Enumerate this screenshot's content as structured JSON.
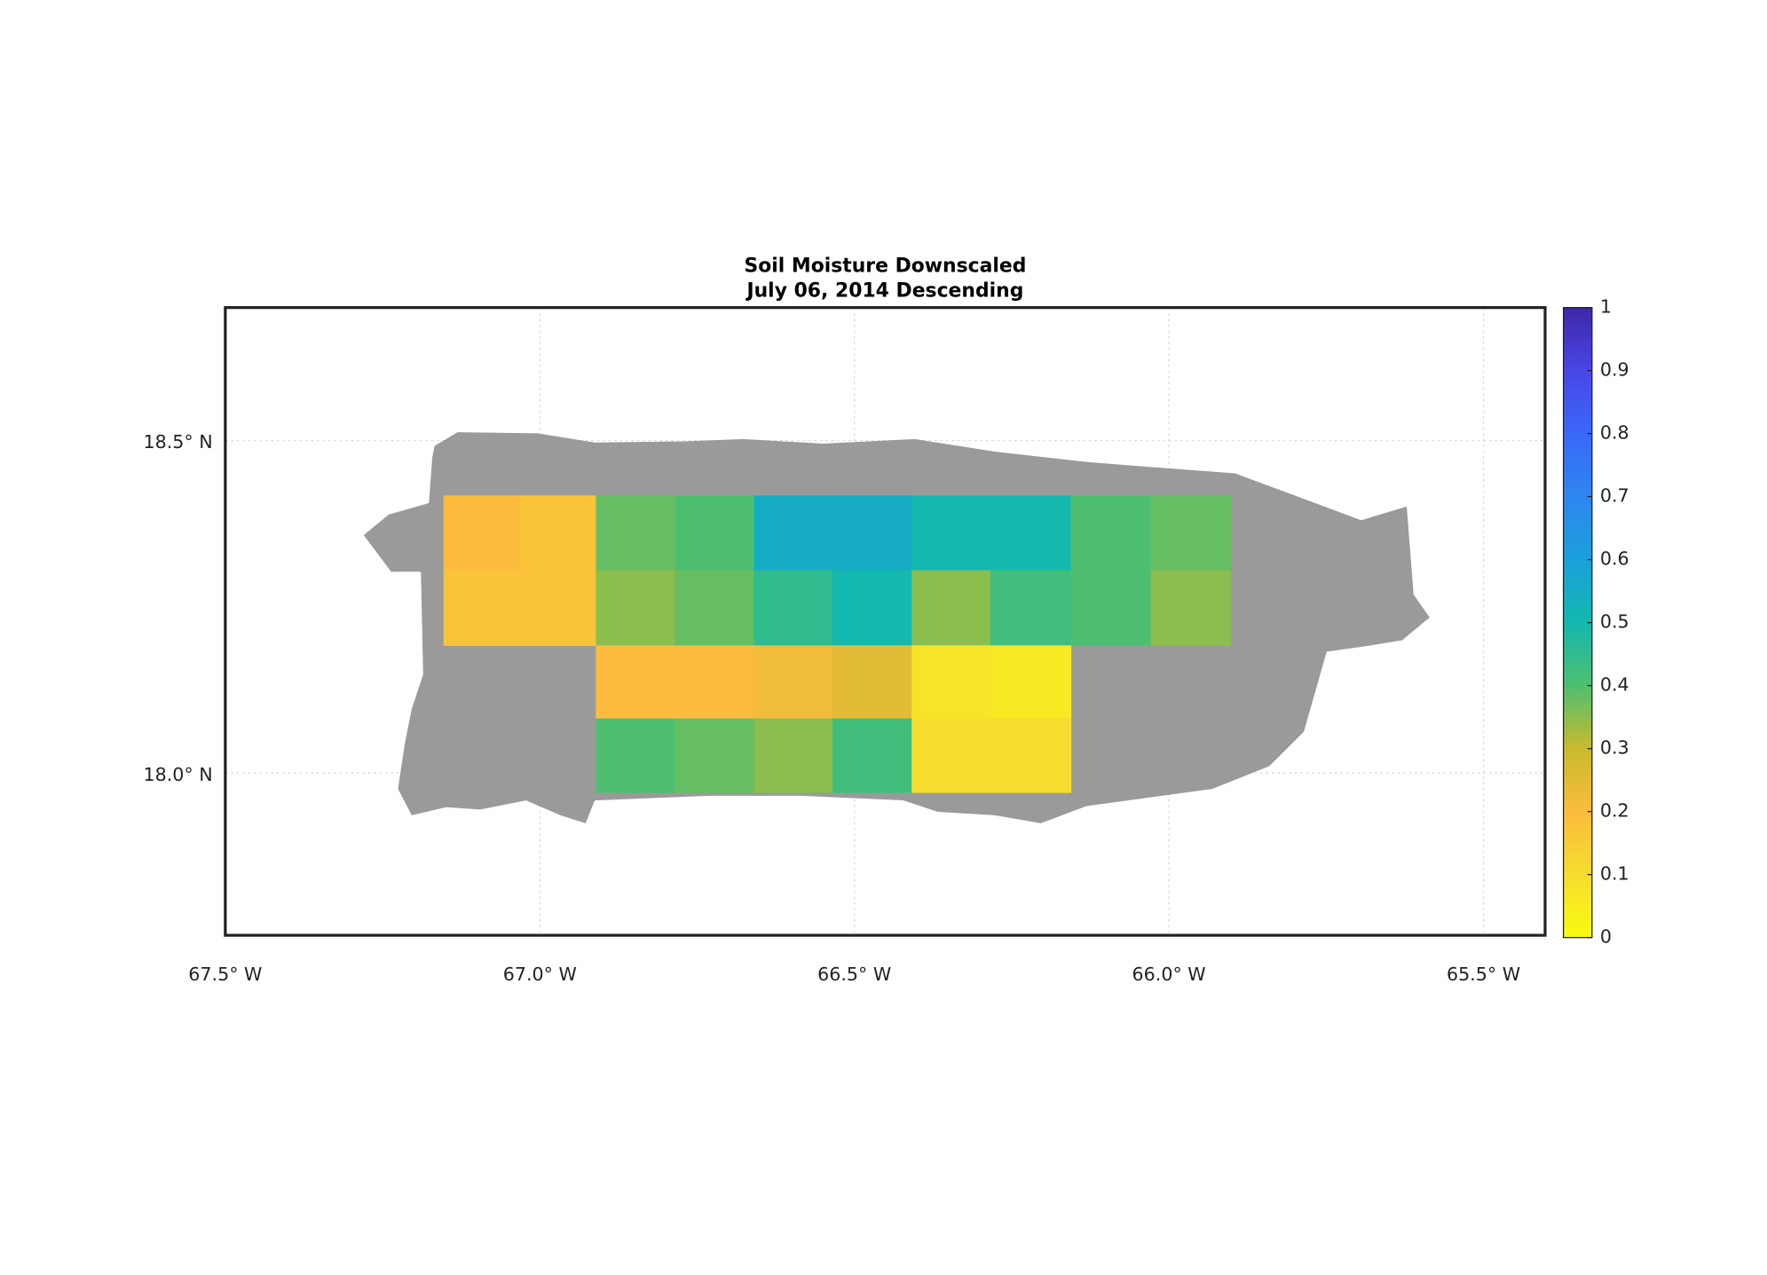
{
  "chart_data": {
    "type": "heatmap",
    "title": "Soil Moisture Downscaled",
    "subtitle": "July 06, 2014 Descending",
    "xlim": [
      -67.5,
      -65.402
    ],
    "ylim": [
      17.756,
      18.7
    ],
    "xticks": [
      {
        "value": -67.5,
        "label": "67.5° W"
      },
      {
        "value": -67.0,
        "label": "67.0° W"
      },
      {
        "value": -66.5,
        "label": "66.5° W"
      },
      {
        "value": -66.0,
        "label": "66.0° W"
      },
      {
        "value": -65.5,
        "label": "65.5° W"
      }
    ],
    "yticks": [
      {
        "value": 18.0,
        "label": "18.0° N"
      },
      {
        "value": 18.5,
        "label": "18.5° N"
      }
    ],
    "grid": true,
    "x_edges": [
      -67.153,
      -67.031,
      -66.911,
      -66.785,
      -66.66,
      -66.535,
      -66.409,
      -66.284,
      -66.156,
      -66.029,
      -65.902
    ],
    "y_edges": [
      18.4175,
      18.305,
      18.192,
      18.082,
      17.971
    ],
    "values": [
      [
        0.2,
        0.18,
        0.38,
        0.4,
        0.55,
        0.55,
        0.5,
        0.5,
        0.4,
        0.38
      ],
      [
        0.18,
        0.18,
        0.35,
        0.38,
        0.45,
        0.5,
        0.35,
        0.42,
        0.4,
        0.35
      ],
      [
        null,
        null,
        0.2,
        0.2,
        0.22,
        0.25,
        0.08,
        0.06,
        null,
        null
      ],
      [
        null,
        null,
        0.4,
        0.38,
        0.35,
        0.42,
        0.1,
        0.1,
        null,
        null
      ]
    ],
    "clim": [
      0,
      1
    ],
    "colorbar_ticks": [
      0,
      0.1,
      0.2,
      0.3,
      0.4,
      0.5,
      0.6,
      0.7,
      0.8,
      0.9,
      1
    ],
    "colormap": [
      "#f9fb0e",
      "#f6dd2f",
      "#fbbc3d",
      "#c8bb2e",
      "#4ebf70",
      "#14b8ae",
      "#1aa0dc",
      "#2f86ef",
      "#3a68f8",
      "#4847e6",
      "#3e26a8"
    ],
    "land_color": "#9a9a9a"
  }
}
